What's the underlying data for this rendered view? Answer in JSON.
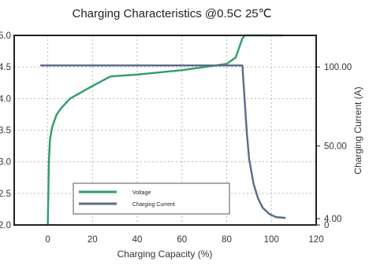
{
  "chart_data": {
    "type": "line",
    "title": "Charging Characteristics @0.5C 25℃",
    "xlabel": "Charging Capacity (%)",
    "ylabel_left": "",
    "ylabel_right": "Charging Current (A)",
    "xlim": [
      -15,
      120
    ],
    "ylim_left": [
      2.0,
      5.0
    ],
    "ylim_right": [
      0,
      120
    ],
    "x_ticks": [
      "0",
      "20",
      "40",
      "60",
      "80",
      "100",
      "120"
    ],
    "x_tick_values": [
      0,
      20,
      40,
      60,
      80,
      100,
      120
    ],
    "y_left_ticks": [
      "2.0",
      "2.5",
      "3.0",
      "3.5",
      "4.0",
      "4.5",
      "5.0"
    ],
    "y_left_tick_values": [
      2.0,
      2.5,
      3.0,
      3.5,
      4.0,
      4.5,
      5.0
    ],
    "y_right_ticks": [
      "100.00",
      "50.00",
      "4.00",
      "0"
    ],
    "y_right_tick_values": [
      100,
      50,
      4,
      0
    ],
    "grid": true,
    "legend_position": "bottom-left",
    "series": [
      {
        "name": "Voltage",
        "axis": "left",
        "color": "#2e9d6a",
        "x": [
          0,
          0.5,
          1,
          2,
          4,
          6,
          10,
          15,
          20,
          28,
          40,
          60,
          80,
          84,
          86,
          87,
          88,
          95,
          105
        ],
        "y": [
          2.0,
          3.0,
          3.35,
          3.55,
          3.75,
          3.85,
          4.0,
          4.1,
          4.2,
          4.35,
          4.38,
          4.45,
          4.55,
          4.65,
          4.85,
          4.95,
          5.05,
          5.05,
          5.05
        ]
      },
      {
        "name": "Charging Current",
        "axis": "right",
        "color": "#5a6b8a",
        "x": [
          -3,
          80,
          87,
          88,
          89,
          90,
          92,
          94,
          96,
          99,
          102,
          106
        ],
        "y": [
          101,
          101,
          101,
          80,
          58,
          42,
          26,
          17,
          11,
          7,
          5,
          4.5
        ]
      }
    ]
  }
}
